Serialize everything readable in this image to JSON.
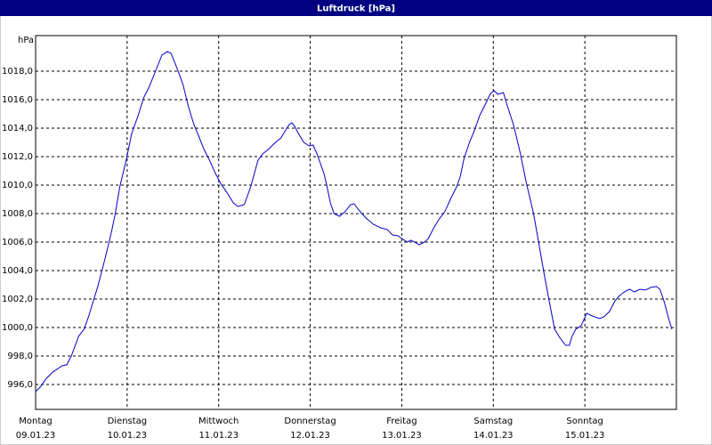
{
  "chart_data": {
    "type": "line",
    "title": "Luftdruck [hPa]",
    "y_label": "hPa",
    "xlim": [
      0,
      7
    ],
    "ylim": [
      994.25,
      1020.5
    ],
    "grid": true,
    "xticks": [
      {
        "value": 0,
        "label": "Montag"
      },
      {
        "value": 1,
        "label": "Dienstag"
      },
      {
        "value": 2,
        "label": "Mittwoch"
      },
      {
        "value": 3,
        "label": "Donnerstag"
      },
      {
        "value": 4,
        "label": "Freitag"
      },
      {
        "value": 5,
        "label": "Samstag"
      },
      {
        "value": 6,
        "label": "Sonntag"
      }
    ],
    "xtick_dates": [
      "09.01.23",
      "10.01.23",
      "11.01.23",
      "12.01.23",
      "13.01.23",
      "14.01.23",
      "15.01.23"
    ],
    "yticks": [
      {
        "value": 996,
        "label": "996,0"
      },
      {
        "value": 998,
        "label": "998,0"
      },
      {
        "value": 1000,
        "label": "1000,0"
      },
      {
        "value": 1002,
        "label": "1002,0"
      },
      {
        "value": 1004,
        "label": "1004,0"
      },
      {
        "value": 1006,
        "label": "1006,0"
      },
      {
        "value": 1008,
        "label": "1008,0"
      },
      {
        "value": 1010,
        "label": "1010,0"
      },
      {
        "value": 1012,
        "label": "1012,0"
      },
      {
        "value": 1014,
        "label": "1014,0"
      },
      {
        "value": 1016,
        "label": "1016,0"
      },
      {
        "value": 1018,
        "label": "1018,0"
      }
    ],
    "series": [
      {
        "color": "#0000cc",
        "x": [
          0,
          0.05,
          0.12,
          0.19,
          0.29,
          0.34,
          0.39,
          0.47,
          0.53,
          0.58,
          0.68,
          0.76,
          0.83,
          0.87,
          0.92,
          0.99,
          1.05,
          1.12,
          1.18,
          1.24,
          1.31,
          1.38,
          1.44,
          1.48,
          1.55,
          1.61,
          1.67,
          1.73,
          1.79,
          1.84,
          1.9,
          1.96,
          2.02,
          2.1,
          2.16,
          2.21,
          2.28,
          2.35,
          2.43,
          2.48,
          2.54,
          2.62,
          2.68,
          2.72,
          2.77,
          2.8,
          2.83,
          2.87,
          2.93,
          2.99,
          3.03,
          3.07,
          3.15,
          3.18,
          3.22,
          3.26,
          3.32,
          3.38,
          3.44,
          3.48,
          3.53,
          3.61,
          3.69,
          3.77,
          3.84,
          3.9,
          3.96,
          4.0,
          4.06,
          4.1,
          4.14,
          4.19,
          4.25,
          4.29,
          4.35,
          4.41,
          4.47,
          4.54,
          4.6,
          4.64,
          4.68,
          4.74,
          4.8,
          4.85,
          4.91,
          4.97,
          5.01,
          5.05,
          5.11,
          5.15,
          5.22,
          5.29,
          5.36,
          5.44,
          5.5,
          5.55,
          5.61,
          5.67,
          5.73,
          5.79,
          5.83,
          5.86,
          5.9,
          5.96,
          6.02,
          6.08,
          6.16,
          6.21,
          6.27,
          6.33,
          6.37,
          6.43,
          6.49,
          6.54,
          6.6,
          6.66,
          6.72,
          6.78,
          6.82,
          6.87,
          6.91,
          6.95
        ],
        "values": [
          995.5,
          995.81,
          996.44,
          996.88,
          997.31,
          997.38,
          998.0,
          999.38,
          999.88,
          1000.81,
          1002.88,
          1004.88,
          1006.75,
          1008.0,
          1009.88,
          1011.75,
          1013.63,
          1014.88,
          1016.13,
          1016.88,
          1018.0,
          1019.13,
          1019.38,
          1019.25,
          1018.13,
          1017.06,
          1015.5,
          1014.25,
          1013.31,
          1012.5,
          1011.75,
          1010.88,
          1010.13,
          1009.38,
          1008.75,
          1008.5,
          1008.63,
          1009.88,
          1011.75,
          1012.19,
          1012.5,
          1013.0,
          1013.31,
          1013.75,
          1014.25,
          1014.38,
          1014.13,
          1013.63,
          1013.0,
          1012.75,
          1012.81,
          1012.25,
          1010.81,
          1010.0,
          1008.75,
          1008.0,
          1007.81,
          1008.13,
          1008.63,
          1008.69,
          1008.25,
          1007.69,
          1007.25,
          1007.0,
          1006.88,
          1006.5,
          1006.44,
          1006.25,
          1006.0,
          1006.13,
          1006.0,
          1005.81,
          1006.0,
          1006.25,
          1007.0,
          1007.63,
          1008.13,
          1009.13,
          1009.88,
          1010.63,
          1011.88,
          1013.0,
          1013.94,
          1014.88,
          1015.63,
          1016.44,
          1016.63,
          1016.38,
          1016.5,
          1015.63,
          1014.25,
          1012.38,
          1010.19,
          1008.0,
          1005.81,
          1003.94,
          1001.88,
          999.88,
          999.25,
          998.75,
          998.75,
          999.38,
          999.88,
          1000.13,
          1001.0,
          1000.81,
          1000.63,
          1000.75,
          1001.13,
          1001.88,
          1002.19,
          1002.5,
          1002.69,
          1002.5,
          1002.69,
          1002.63,
          1002.81,
          1002.88,
          1002.69,
          1001.75,
          1000.75,
          999.88
        ]
      }
    ]
  }
}
